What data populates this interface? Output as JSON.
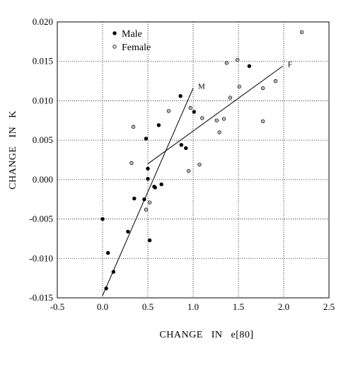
{
  "chart_data": {
    "type": "scatter",
    "xlabel": "CHANGE   IN   e[80]",
    "ylabel": "CHANGE   IN   K",
    "xlim": [
      -0.5,
      2.5
    ],
    "ylim": [
      -0.015,
      0.02
    ],
    "xticks": [
      -0.5,
      0.0,
      0.5,
      1.0,
      1.5,
      2.0,
      2.5
    ],
    "xtick_labels": [
      "-0.5",
      "0.0",
      "0.5",
      "1.0",
      "1.5",
      "2.0",
      "2.5"
    ],
    "yticks": [
      -0.015,
      -0.01,
      -0.005,
      0.0,
      0.005,
      0.01,
      0.015,
      0.02
    ],
    "ytick_labels": [
      "-0.015",
      "-0.010",
      "-0.005",
      "0.000",
      "0.005",
      "0.010",
      "0.015",
      "0.020"
    ],
    "grid": true,
    "legend_position": "top-left",
    "legend": [
      {
        "name": "Male",
        "marker": "filled-circle"
      },
      {
        "name": "Female",
        "marker": "open-circle"
      }
    ],
    "series": [
      {
        "name": "Male",
        "marker": "filled",
        "points": [
          [
            0.0,
            -0.005
          ],
          [
            0.04,
            -0.0138
          ],
          [
            0.06,
            -0.0093
          ],
          [
            0.12,
            -0.0117
          ],
          [
            0.28,
            -0.0066
          ],
          [
            0.35,
            -0.0024
          ],
          [
            0.46,
            -0.0025
          ],
          [
            0.48,
            0.0052
          ],
          [
            0.5,
            0.0014
          ],
          [
            0.5,
            0.0001
          ],
          [
            0.52,
            -0.0077
          ],
          [
            0.57,
            -0.0009
          ],
          [
            0.58,
            -0.001
          ],
          [
            0.62,
            0.0069
          ],
          [
            0.65,
            -0.0006
          ],
          [
            0.86,
            0.0106
          ],
          [
            0.87,
            0.0044
          ],
          [
            0.92,
            0.004
          ],
          [
            1.01,
            0.0086
          ],
          [
            1.62,
            0.0144
          ]
        ]
      },
      {
        "name": "Female",
        "marker": "open",
        "points": [
          [
            0.32,
            0.0021
          ],
          [
            0.34,
            0.0067
          ],
          [
            0.48,
            -0.0038
          ],
          [
            0.52,
            -0.0029
          ],
          [
            0.73,
            0.0087
          ],
          [
            0.95,
            0.0011
          ],
          [
            0.97,
            0.0091
          ],
          [
            1.07,
            0.0019
          ],
          [
            1.1,
            0.0078
          ],
          [
            1.26,
            0.0075
          ],
          [
            1.29,
            0.006
          ],
          [
            1.34,
            0.0077
          ],
          [
            1.37,
            0.0148
          ],
          [
            1.41,
            0.0104
          ],
          [
            1.49,
            0.0152
          ],
          [
            1.51,
            0.0118
          ],
          [
            1.77,
            0.0116
          ],
          [
            1.77,
            0.0074
          ],
          [
            1.91,
            0.0125
          ],
          [
            2.2,
            0.0187
          ]
        ]
      }
    ],
    "lines": [
      {
        "name": "M",
        "x": [
          0.0,
          1.0
        ],
        "y": [
          -0.0147,
          0.0116
        ]
      },
      {
        "name": "F",
        "x": [
          0.5,
          1.99
        ],
        "y": [
          0.002,
          0.0144
        ]
      }
    ]
  }
}
